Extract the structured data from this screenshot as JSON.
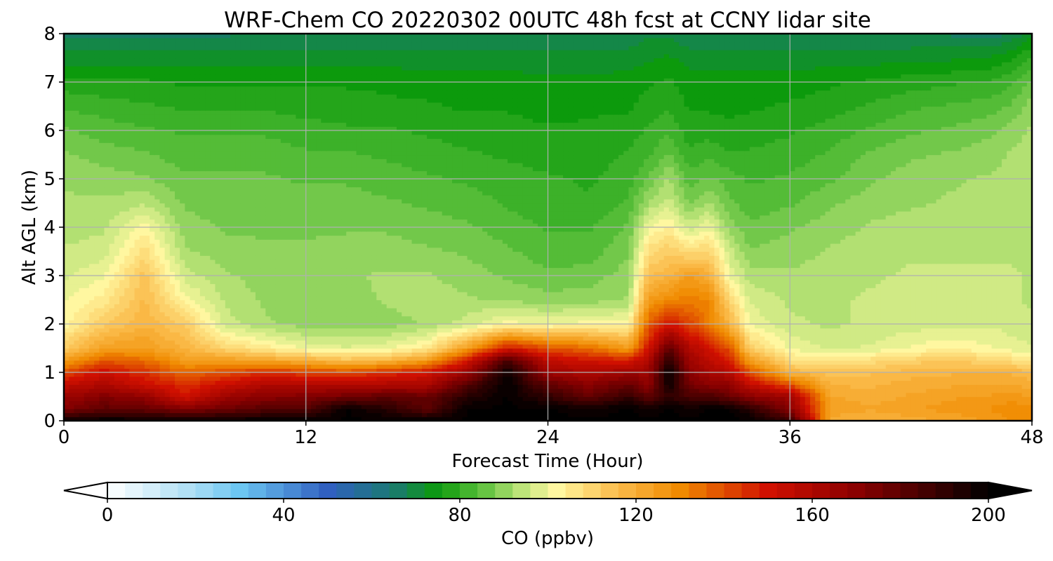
{
  "chart_data": {
    "type": "heatmap",
    "title": "WRF-Chem CO  20220302 00UTC 48h fcst at CCNY lidar site",
    "xlabel": "Forecast Time (Hour)",
    "ylabel": "Alt AGL (km)",
    "xlim": [
      0,
      48
    ],
    "ylim": [
      0,
      8
    ],
    "xticks": [
      0,
      12,
      24,
      36,
      48
    ],
    "yticks": [
      0,
      1,
      2,
      3,
      4,
      5,
      6,
      7,
      8
    ],
    "grid": true,
    "colorbar": {
      "label": "CO  (ppbv)",
      "range": [
        0,
        200
      ],
      "ticks": [
        0,
        40,
        80,
        120,
        160,
        200
      ],
      "extend": "both",
      "orientation": "horizontal",
      "colors": {
        "0": "#ffffff",
        "20": "#a8dcf4",
        "30": "#6cc6f2",
        "50": "#3060c0",
        "65": "#1a7a70",
        "75": "#0c9a0c",
        "85": "#5cc03c",
        "95": "#c8e880",
        "102": "#fff7a0",
        "115": "#fbbf50",
        "130": "#f08a00",
        "150": "#d01000",
        "170": "#8a0000",
        "190": "#300000",
        "200": "#000000"
      }
    },
    "hours": [
      0,
      2,
      4,
      6,
      8,
      10,
      12,
      14,
      16,
      18,
      20,
      22,
      24,
      26,
      28,
      29,
      30,
      31,
      32,
      33,
      34,
      36,
      38,
      40,
      42,
      44,
      46,
      47,
      48
    ],
    "altitudes_km": [
      0,
      0.25,
      0.5,
      0.75,
      1,
      1.25,
      1.5,
      2,
      2.5,
      3,
      3.5,
      4,
      4.5,
      5,
      5.5,
      6,
      6.5,
      7,
      7.5,
      8
    ],
    "co_ppbv": [
      [
        200,
        200,
        200,
        200,
        200,
        200,
        200,
        200,
        200,
        200,
        200,
        200,
        200,
        200,
        200,
        200,
        200,
        200,
        200,
        200,
        200,
        190,
        120,
        118,
        120,
        122,
        125,
        128,
        130
      ],
      [
        172,
        180,
        178,
        172,
        176,
        182,
        182,
        200,
        192,
        180,
        200,
        200,
        200,
        198,
        200,
        198,
        200,
        198,
        200,
        200,
        192,
        170,
        124,
        122,
        124,
        126,
        128,
        130,
        128
      ],
      [
        165,
        172,
        168,
        150,
        165,
        170,
        172,
        176,
        180,
        178,
        192,
        200,
        190,
        178,
        190,
        180,
        190,
        185,
        185,
        178,
        170,
        165,
        122,
        120,
        122,
        124,
        125,
        126,
        124
      ],
      [
        155,
        160,
        152,
        145,
        152,
        160,
        160,
        158,
        160,
        160,
        182,
        200,
        180,
        170,
        178,
        168,
        198,
        175,
        170,
        168,
        155,
        140,
        118,
        118,
        120,
        121,
        122,
        122,
        120
      ],
      [
        140,
        152,
        145,
        135,
        140,
        145,
        142,
        140,
        145,
        150,
        165,
        198,
        165,
        160,
        165,
        165,
        200,
        170,
        162,
        158,
        140,
        118,
        114,
        115,
        117,
        118,
        118,
        118,
        116
      ],
      [
        125,
        138,
        135,
        125,
        125,
        122,
        120,
        115,
        118,
        125,
        150,
        185,
        155,
        150,
        148,
        160,
        192,
        165,
        156,
        148,
        125,
        108,
        105,
        108,
        111,
        113,
        110,
        108,
        106
      ],
      [
        112,
        124,
        125,
        118,
        110,
        105,
        100,
        98,
        100,
        105,
        125,
        150,
        140,
        135,
        125,
        150,
        180,
        160,
        150,
        140,
        112,
        100,
        97,
        98,
        101,
        103,
        101,
        99,
        98
      ],
      [
        102,
        112,
        118,
        112,
        96,
        92,
        90,
        90,
        90,
        92,
        96,
        102,
        100,
        102,
        102,
        138,
        150,
        142,
        132,
        118,
        100,
        95,
        94,
        95,
        96,
        97,
        97,
        96,
        95
      ],
      [
        100,
        105,
        116,
        102,
        94,
        91,
        90,
        90,
        92,
        93,
        92,
        91,
        90,
        90,
        92,
        125,
        130,
        132,
        130,
        110,
        97,
        94,
        94,
        95,
        96,
        96,
        96,
        95,
        94
      ],
      [
        97,
        100,
        114,
        96,
        92,
        90,
        90,
        91,
        92,
        92,
        90,
        88,
        86,
        87,
        90,
        115,
        118,
        125,
        120,
        100,
        93,
        92,
        93,
        94,
        95,
        95,
        95,
        95,
        94
      ],
      [
        95,
        96,
        108,
        92,
        90,
        89,
        89,
        90,
        90,
        89,
        88,
        86,
        84,
        84,
        88,
        108,
        112,
        108,
        110,
        96,
        89,
        90,
        92,
        93,
        94,
        94,
        94,
        94,
        93
      ],
      [
        93,
        94,
        102,
        90,
        88,
        88,
        88,
        88,
        88,
        87,
        86,
        84,
        82,
        82,
        86,
        100,
        104,
        96,
        100,
        90,
        86,
        88,
        90,
        92,
        93,
        93,
        93,
        93,
        92
      ],
      [
        92,
        92,
        94,
        88,
        87,
        87,
        87,
        87,
        86,
        85,
        84,
        82,
        81,
        80,
        83,
        92,
        96,
        88,
        92,
        86,
        84,
        85,
        88,
        90,
        91,
        92,
        93,
        93,
        92
      ],
      [
        91,
        90,
        89,
        86,
        86,
        86,
        85,
        85,
        84,
        83,
        82,
        81,
        80,
        79,
        81,
        86,
        92,
        84,
        86,
        84,
        82,
        83,
        85,
        88,
        90,
        91,
        92,
        93,
        92
      ],
      [
        89,
        87,
        86,
        84,
        84,
        84,
        83,
        83,
        82,
        81,
        80,
        79,
        78,
        78,
        80,
        82,
        86,
        80,
        82,
        80,
        80,
        81,
        83,
        86,
        88,
        89,
        90,
        92,
        93
      ],
      [
        86,
        84,
        83,
        82,
        82,
        82,
        81,
        80,
        80,
        79,
        78,
        78,
        77,
        77,
        78,
        80,
        82,
        78,
        78,
        77,
        78,
        79,
        81,
        83,
        85,
        86,
        88,
        90,
        92
      ],
      [
        82,
        81,
        80,
        79,
        79,
        79,
        78,
        78,
        77,
        77,
        76,
        76,
        75,
        76,
        76,
        78,
        79,
        76,
        76,
        76,
        76,
        77,
        78,
        80,
        82,
        83,
        84,
        86,
        90
      ],
      [
        78,
        77,
        77,
        76,
        76,
        76,
        76,
        76,
        76,
        75,
        75,
        75,
        74,
        74,
        75,
        76,
        77,
        75,
        75,
        75,
        75,
        75,
        76,
        77,
        78,
        79,
        80,
        82,
        86
      ],
      [
        72,
        72,
        72,
        72,
        72,
        72,
        72,
        72,
        72,
        72,
        72,
        72,
        72,
        72,
        72,
        73,
        74,
        72,
        72,
        72,
        72,
        72,
        72,
        72,
        73,
        73,
        74,
        76,
        80
      ],
      [
        66,
        66,
        67,
        67,
        67,
        68,
        68,
        68,
        68,
        68,
        68,
        68,
        68,
        68,
        68,
        70,
        70,
        68,
        68,
        68,
        68,
        68,
        68,
        68,
        67,
        67,
        66,
        68,
        72
      ]
    ]
  }
}
